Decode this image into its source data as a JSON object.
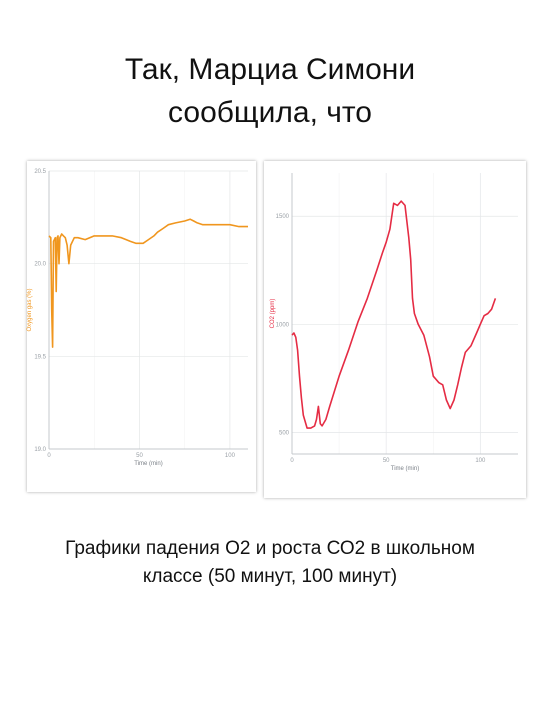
{
  "slide": {
    "title_line1": "Так, Марциа Симони",
    "title_line2": "сообщила, что",
    "caption_line1": "Графики падения О2 и роста СО2 в школьном",
    "caption_line2": "классе (50 минут, 100 минут)"
  },
  "chart_data": [
    {
      "type": "line",
      "title": "",
      "xlabel": "Time (min)",
      "ylabel": "Oxygen gas (%)",
      "xlim": [
        0,
        110
      ],
      "ylim": [
        19.0,
        20.5
      ],
      "x_ticks": [
        0,
        50,
        100
      ],
      "y_ticks": [
        19.0,
        19.5,
        20.0,
        20.5
      ],
      "grid": true,
      "color": "#f0961e",
      "series": [
        {
          "x": [
            0,
            1,
            1.5,
            2,
            2.5,
            3,
            3.5,
            4,
            4.5,
            5,
            5.5,
            6,
            7,
            8,
            9,
            10,
            11,
            12,
            14,
            16,
            20,
            25,
            30,
            35,
            40,
            45,
            48,
            50,
            52,
            55,
            58,
            60,
            63,
            66,
            70,
            75,
            78,
            80,
            82,
            85,
            90,
            95,
            100,
            105,
            110
          ],
          "y": [
            20.15,
            20.14,
            19.75,
            19.55,
            20.12,
            20.13,
            20.14,
            19.85,
            20.14,
            20.15,
            20.0,
            20.14,
            20.16,
            20.15,
            20.14,
            20.1,
            20.0,
            20.1,
            20.14,
            20.14,
            20.13,
            20.15,
            20.15,
            20.15,
            20.14,
            20.12,
            20.11,
            20.11,
            20.11,
            20.13,
            20.15,
            20.17,
            20.19,
            20.21,
            20.22,
            20.23,
            20.24,
            20.23,
            20.22,
            20.21,
            20.21,
            20.21,
            20.21,
            20.2,
            20.2
          ]
        }
      ]
    },
    {
      "type": "line",
      "title": "",
      "xlabel": "Time (min)",
      "ylabel": "CO2 (ppm)",
      "xlim": [
        0,
        120
      ],
      "ylim": [
        400,
        1700
      ],
      "x_ticks": [
        0,
        50,
        100
      ],
      "y_ticks": [
        500,
        1000,
        1500
      ],
      "grid": true,
      "color": "#e52c44",
      "series": [
        {
          "x": [
            0,
            1,
            2,
            3,
            4,
            5,
            6,
            8,
            10,
            12,
            13,
            14,
            15,
            16,
            18,
            20,
            25,
            30,
            35,
            40,
            45,
            48,
            50,
            52,
            54,
            56,
            58,
            60,
            62,
            63,
            64,
            65,
            67,
            70,
            73,
            75,
            78,
            80,
            82,
            84,
            86,
            88,
            90,
            92,
            95,
            98,
            100,
            102,
            104,
            106,
            108
          ],
          "y": [
            950,
            960,
            940,
            880,
            760,
            660,
            580,
            520,
            520,
            530,
            560,
            620,
            540,
            530,
            560,
            620,
            760,
            880,
            1010,
            1120,
            1250,
            1330,
            1380,
            1440,
            1560,
            1550,
            1570,
            1550,
            1400,
            1300,
            1120,
            1050,
            1000,
            950,
            850,
            760,
            730,
            720,
            650,
            610,
            650,
            720,
            800,
            870,
            900,
            960,
            1000,
            1040,
            1050,
            1070,
            1120
          ]
        }
      ]
    }
  ]
}
